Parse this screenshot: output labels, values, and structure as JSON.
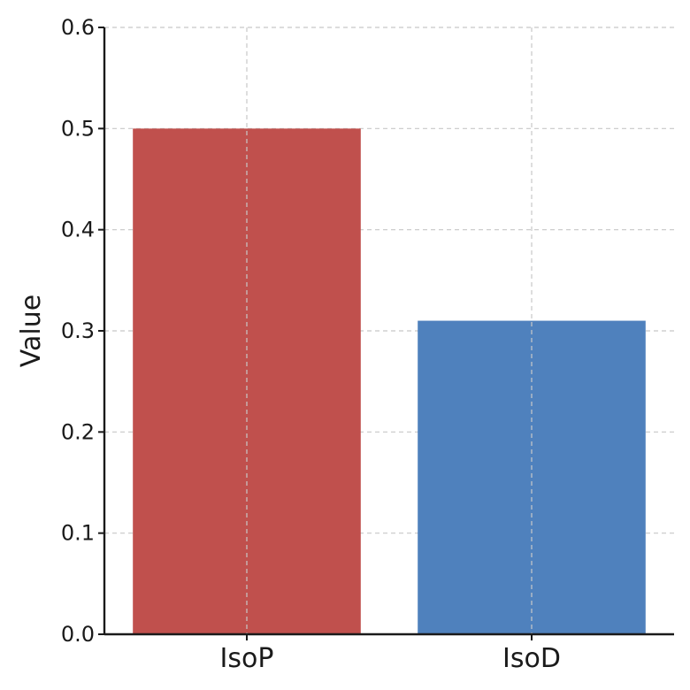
{
  "chart_data": {
    "type": "bar",
    "categories": [
      "IsoP",
      "IsoD"
    ],
    "values": [
      0.5,
      0.31
    ],
    "colors": [
      "#c0504d",
      "#4f81bd"
    ],
    "title": "",
    "xlabel": "",
    "ylabel": "Value",
    "ylim": [
      0,
      0.6
    ],
    "yticks": [
      "0.0",
      "0.1",
      "0.2",
      "0.3",
      "0.4",
      "0.5",
      "0.6"
    ],
    "grid": true
  }
}
